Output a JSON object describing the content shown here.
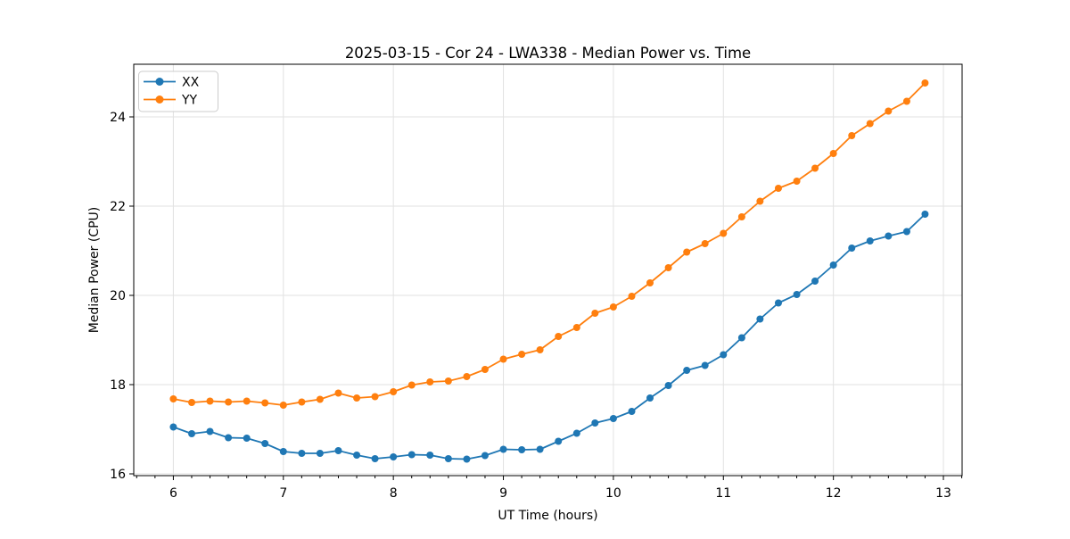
{
  "chart_data": {
    "type": "line",
    "title": "2025-03-15 - Cor 24 - LWA338 - Median Power vs. Time",
    "xlabel": "UT Time (hours)",
    "ylabel": "Median Power (CPU)",
    "xlim": [
      5.64,
      13.17
    ],
    "ylim": [
      15.96,
      25.18
    ],
    "x_ticks": [
      6,
      7,
      8,
      9,
      10,
      11,
      12,
      13
    ],
    "y_ticks": [
      16,
      18,
      20,
      22,
      24
    ],
    "x_minor_divisions": 6,
    "grid": true,
    "legend_position": "upper-left",
    "x": [
      6.0,
      6.167,
      6.333,
      6.5,
      6.667,
      6.833,
      7.0,
      7.167,
      7.333,
      7.5,
      7.667,
      7.833,
      8.0,
      8.167,
      8.333,
      8.5,
      8.667,
      8.833,
      9.0,
      9.167,
      9.333,
      9.5,
      9.667,
      9.833,
      10.0,
      10.167,
      10.333,
      10.5,
      10.667,
      10.833,
      11.0,
      11.167,
      11.333,
      11.5,
      11.667,
      11.833,
      12.0,
      12.167,
      12.333,
      12.5,
      12.667,
      12.833
    ],
    "series": [
      {
        "name": "XX",
        "color": "#1f77b4",
        "values": [
          17.05,
          16.9,
          16.95,
          16.81,
          16.8,
          16.68,
          16.5,
          16.46,
          16.46,
          16.52,
          16.42,
          16.34,
          16.38,
          16.43,
          16.42,
          16.34,
          16.33,
          16.41,
          16.55,
          16.54,
          16.55,
          16.73,
          16.91,
          17.14,
          17.24,
          17.4,
          17.7,
          17.98,
          18.32,
          18.43,
          18.67,
          19.05,
          19.47,
          19.83,
          20.02,
          20.32,
          20.68,
          21.06,
          21.22,
          21.33,
          21.43,
          21.82
        ]
      },
      {
        "name": "YY",
        "color": "#ff7f0e",
        "values": [
          17.68,
          17.6,
          17.63,
          17.61,
          17.63,
          17.59,
          17.54,
          17.61,
          17.67,
          17.81,
          17.7,
          17.73,
          17.84,
          17.99,
          18.06,
          18.08,
          18.18,
          18.34,
          18.57,
          18.68,
          18.78,
          19.08,
          19.28,
          19.6,
          19.74,
          19.98,
          20.28,
          20.62,
          20.97,
          21.16,
          21.39,
          21.76,
          22.11,
          22.4,
          22.56,
          22.85,
          23.18,
          23.58,
          23.85,
          24.13,
          24.35,
          24.76
        ]
      }
    ],
    "colors": {
      "background": "#ffffff",
      "grid": "#e2e2e2",
      "axis": "#000000",
      "legend_border": "#cccccc"
    }
  }
}
